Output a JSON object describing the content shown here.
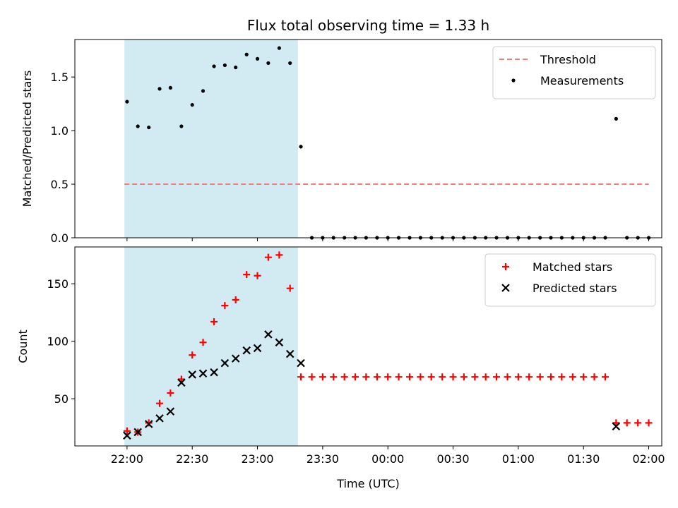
{
  "chart_data": [
    {
      "type": "scatter",
      "title": "Flux total observing time = 1.33 h",
      "ylabel": "Matched/Predicted stars",
      "xlabel": "",
      "ylim": [
        0,
        1.85
      ],
      "yticks": [
        0.0,
        0.5,
        1.0,
        1.5
      ],
      "ytick_labels": [
        "0.0",
        "0.5",
        "1.0",
        "1.5"
      ],
      "xlim": [
        -0.4,
        4.1
      ],
      "highlight_span": [
        -0.02,
        1.31
      ],
      "highlight_color": "#add8e6",
      "threshold": {
        "name": "Threshold",
        "value": 0.5,
        "x_range": [
          -0.02,
          4.0
        ],
        "color": "#f08080"
      },
      "series": [
        {
          "name": "Measurements",
          "color": "#000000",
          "marker": "dot",
          "x": [
            0.0,
            0.083,
            0.167,
            0.25,
            0.333,
            0.417,
            0.5,
            0.583,
            0.667,
            0.75,
            0.833,
            0.917,
            1.0,
            1.083,
            1.167,
            1.25,
            1.333,
            1.417,
            1.5,
            1.583,
            1.667,
            1.75,
            1.833,
            1.917,
            2.0,
            2.083,
            2.167,
            2.25,
            2.333,
            2.417,
            2.5,
            2.583,
            2.667,
            2.75,
            2.833,
            2.917,
            3.0,
            3.083,
            3.167,
            3.25,
            3.333,
            3.417,
            3.5,
            3.583,
            3.667,
            3.75,
            3.833,
            3.917,
            4.0
          ],
          "y": [
            1.27,
            1.04,
            1.03,
            1.39,
            1.4,
            1.04,
            1.24,
            1.37,
            1.6,
            1.61,
            1.59,
            1.71,
            1.67,
            1.63,
            1.77,
            1.63,
            0.85,
            0.0,
            0.0,
            0.0,
            0.0,
            0.0,
            0.0,
            0.0,
            0.0,
            0.0,
            0.0,
            0.0,
            0.0,
            0.0,
            0.0,
            0.0,
            0.0,
            0.0,
            0.0,
            0.0,
            0.0,
            0.0,
            0.0,
            0.0,
            0.0,
            0.0,
            0.0,
            0.0,
            0.0,
            1.11,
            0.0,
            0.0,
            0.0
          ]
        }
      ],
      "legend_position": "top-right"
    },
    {
      "type": "scatter",
      "title": "",
      "ylabel": "Count",
      "xlabel": "Time (UTC)",
      "ylim": [
        9,
        182
      ],
      "yticks": [
        50,
        100,
        150
      ],
      "ytick_labels": [
        "50",
        "100",
        "150"
      ],
      "xlim": [
        -0.4,
        4.1
      ],
      "xticks": [
        0,
        0.5,
        1.0,
        1.5,
        2.0,
        2.5,
        3.0,
        3.5,
        4.0
      ],
      "xtick_labels": [
        "22:00",
        "22:30",
        "23:00",
        "23:30",
        "00:00",
        "00:30",
        "01:00",
        "01:30",
        "02:00"
      ],
      "highlight_span": [
        -0.02,
        1.31
      ],
      "highlight_color": "#add8e6",
      "series": [
        {
          "name": "Matched stars",
          "color": "#ff0000",
          "marker": "plus",
          "x": [
            0.0,
            0.083,
            0.167,
            0.25,
            0.333,
            0.417,
            0.5,
            0.583,
            0.667,
            0.75,
            0.833,
            0.917,
            1.0,
            1.083,
            1.167,
            1.25,
            1.333,
            1.417,
            1.5,
            1.583,
            1.667,
            1.75,
            1.833,
            1.917,
            2.0,
            2.083,
            2.167,
            2.25,
            2.333,
            2.417,
            2.5,
            2.583,
            2.667,
            2.75,
            2.833,
            2.917,
            3.0,
            3.083,
            3.167,
            3.25,
            3.333,
            3.417,
            3.5,
            3.583,
            3.667,
            3.75,
            3.833,
            3.917,
            4.0
          ],
          "y": [
            22,
            21,
            29,
            46,
            55,
            67,
            88,
            99,
            117,
            131,
            136,
            158,
            157,
            173,
            175,
            146,
            69,
            69,
            69,
            69,
            69,
            69,
            69,
            69,
            69,
            69,
            69,
            69,
            69,
            69,
            69,
            69,
            69,
            69,
            69,
            69,
            69,
            69,
            69,
            69,
            69,
            69,
            69,
            69,
            69,
            29,
            29,
            29,
            29
          ]
        },
        {
          "name": "Predicted stars",
          "color": "#000000",
          "marker": "x",
          "x": [
            0.0,
            0.083,
            0.167,
            0.25,
            0.333,
            0.417,
            0.5,
            0.583,
            0.667,
            0.75,
            0.833,
            0.917,
            1.0,
            1.083,
            1.167,
            1.25,
            1.333,
            3.75
          ],
          "y": [
            18,
            21,
            28,
            33,
            39,
            64,
            71,
            72,
            73,
            81,
            85,
            92,
            94,
            106,
            99,
            89,
            81,
            26
          ]
        }
      ],
      "legend_position": "top-right"
    }
  ]
}
